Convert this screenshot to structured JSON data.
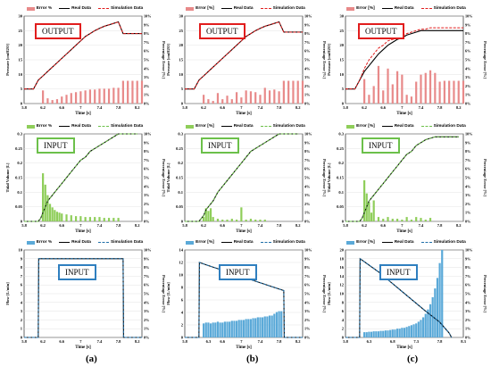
{
  "labels": [
    "(a)",
    "(b)",
    "(c)"
  ],
  "colors": {
    "output_bar": "#e88a8a",
    "input_bar": "#8fce5a",
    "flow_bar": "#5aa9d8",
    "real": "#000000",
    "sim_output": "#e11d1d",
    "sim_input": "#6cc04a",
    "sim_flow": "#1f6fa8"
  },
  "panels": [
    {
      "id": "a-output",
      "title": "OUTPUT",
      "frame": "red",
      "legend": [
        "Error %",
        "Real Data",
        "Simulation Data"
      ],
      "ylabel": "Pressure [cmH2O]",
      "y2label": "Percentage Error [%]",
      "xlabel": "Time [s]",
      "yticks": [
        "0",
        "5",
        "10",
        "15",
        "20",
        "25",
        "30"
      ],
      "y2ticks": [
        "0%",
        "1%",
        "2%",
        "3%",
        "4%",
        "5%",
        "6%",
        "7%",
        "8%",
        "9%",
        "10%"
      ],
      "xticks": [
        "5.8",
        "6.2",
        "6.6",
        "7",
        "7.4",
        "7.8",
        "8.2"
      ]
    },
    {
      "id": "b-output",
      "title": "OUTPUT",
      "frame": "red",
      "legend": [
        "Error [%]",
        "Real Data",
        "Simulation Data"
      ],
      "ylabel": "Pressure [cmH2O]",
      "y2label": "Percentage Error [%]",
      "xlabel": "Time [s]",
      "yticks": [
        "0",
        "5",
        "10",
        "15",
        "20",
        "25",
        "30"
      ],
      "y2ticks": [
        "0%",
        "1%",
        "2%",
        "3%",
        "4%",
        "5%",
        "6%",
        "7%",
        "8%",
        "9%",
        "10%"
      ],
      "xticks": [
        "5.8",
        "6.2",
        "6.6",
        "7",
        "7.4",
        "7.8",
        "8.2"
      ]
    },
    {
      "id": "c-output",
      "title": "OUTPUT",
      "frame": "red",
      "legend": [
        "Error [%]",
        "Real Data",
        "Simulation Data"
      ],
      "ylabel": "Pressure [cmH2O]",
      "y2label": "Percentage Error [%]",
      "xlabel": "Time [s]",
      "yticks": [
        "0",
        "5",
        "10",
        "15",
        "20",
        "25",
        "30"
      ],
      "y2ticks": [
        "0%",
        "1%",
        "2%",
        "3%",
        "4%",
        "5%",
        "6%",
        "7%",
        "8%",
        "9%",
        "10%"
      ],
      "xticks": [
        "5.8",
        "6.2",
        "6.6",
        "7",
        "7.4",
        "7.8",
        "8.2"
      ]
    },
    {
      "id": "a-input",
      "title": "INPUT",
      "frame": "green",
      "legend": [
        "Error %",
        "Real Data",
        "Simulation Data"
      ],
      "ylabel": "Tidal Volume [L]",
      "y2label": "Percentage Error [%]",
      "xlabel": "Time [s]",
      "yticks": [
        "0",
        "0.05",
        "0.1",
        "0.15",
        "0.2",
        "0.25",
        "0.3"
      ],
      "y2ticks": [
        "0%",
        "1%",
        "2%",
        "3%",
        "4%",
        "5%",
        "6%",
        "7%",
        "8%",
        "9%",
        "10%"
      ],
      "xticks": [
        "5.8",
        "6.2",
        "6.6",
        "7",
        "7.4",
        "7.8",
        "8.2"
      ]
    },
    {
      "id": "b-input",
      "title": "INPUT",
      "frame": "green",
      "legend": [
        "Error [%]",
        "Real Data",
        "Simulation Data"
      ],
      "ylabel": "Tidal Volume [L]",
      "y2label": "Percentage Error [%]",
      "xlabel": "Time [s]",
      "yticks": [
        "0",
        "0.05",
        "0.1",
        "0.15",
        "0.2",
        "0.25",
        "0.3"
      ],
      "y2ticks": [
        "0%",
        "1%",
        "2%",
        "3%",
        "4%",
        "5%",
        "6%",
        "7%",
        "8%",
        "9%",
        "10%"
      ],
      "xticks": [
        "5.8",
        "6.2",
        "6.6",
        "7",
        "7.4",
        "7.8",
        "8.2"
      ]
    },
    {
      "id": "c-input",
      "title": "INPUT",
      "frame": "green",
      "legend": [
        "Error [%]",
        "Real Data",
        "Simulation Data"
      ],
      "ylabel": "Tidal Volume [L]",
      "y2label": "Percentage Error [%]",
      "xlabel": "Time [s]",
      "yticks": [
        "0",
        "0.05",
        "0.1",
        "0.15",
        "0.2",
        "0.25",
        "0.3"
      ],
      "y2ticks": [
        "0%",
        "1%",
        "2%",
        "3%",
        "4%",
        "5%",
        "6%",
        "7%",
        "8%",
        "9%",
        "10%"
      ],
      "xticks": [
        "5.8",
        "6.2",
        "6.6",
        "7",
        "7.4",
        "7.8",
        "8.2"
      ]
    },
    {
      "id": "a-flow",
      "title": "INPUT",
      "frame": "blue",
      "legend": [
        "Error %",
        "Real Data",
        "Simulation Data"
      ],
      "ylabel": "Flow [L/min]",
      "y2label": "Percentage Error [%]",
      "xlabel": "Time [s]",
      "yticks": [
        "0",
        "1",
        "2",
        "3",
        "4",
        "5",
        "6",
        "7",
        "8",
        "9",
        "10"
      ],
      "y2ticks": [
        "0%",
        "1%",
        "2%",
        "3%",
        "4%",
        "5%",
        "6%",
        "7%",
        "8%",
        "9%",
        "10%"
      ],
      "xticks": [
        "5.8",
        "6.2",
        "6.6",
        "7",
        "7.4",
        "7.8",
        "8.2"
      ]
    },
    {
      "id": "b-flow",
      "title": "INPUT",
      "frame": "blue",
      "legend": [
        "Error [%]",
        "Real Data",
        "Simulation Data"
      ],
      "ylabel": "Flow [L/min]",
      "y2label": "Percentage Error [%]",
      "xlabel": "Time [s]",
      "yticks": [
        "0",
        "2",
        "4",
        "6",
        "8",
        "10",
        "12",
        "14"
      ],
      "y2ticks": [
        "0%",
        "1%",
        "2%",
        "3%",
        "4%",
        "5%",
        "6%",
        "7%",
        "8%",
        "9%",
        "10%"
      ],
      "xticks": [
        "5.8",
        "6.3",
        "6.6",
        "7",
        "7.4",
        "7.8",
        "8.2"
      ]
    },
    {
      "id": "c-flow",
      "title": "INPUT",
      "frame": "blue",
      "legend": [
        "Error [%]",
        "Real Data",
        "Simulation Data"
      ],
      "ylabel": "Flow [L/min]",
      "y2label": "Percentage Error [%]",
      "xlabel": "Time [s]",
      "yticks": [
        "0",
        "2",
        "4",
        "6",
        "8",
        "10",
        "12",
        "14",
        "16",
        "18",
        "20"
      ],
      "y2ticks": [
        "0%",
        "1%",
        "2%",
        "3%",
        "4%",
        "5%",
        "6%",
        "7%",
        "8%",
        "9%",
        "10%"
      ],
      "xticks": [
        "5.8",
        "6.3",
        "6.8",
        "7.3",
        "7.8",
        "8.3"
      ]
    }
  ],
  "chart_data": [
    {
      "type": "bar+line",
      "panel": "a-output",
      "x": [
        5.8,
        5.9,
        6.0,
        6.1,
        6.2,
        6.3,
        6.4,
        6.5,
        6.6,
        6.7,
        6.8,
        6.9,
        7.0,
        7.1,
        7.2,
        7.3,
        7.4,
        7.5,
        7.6,
        7.7,
        7.8,
        7.9,
        8.0,
        8.1,
        8.2,
        8.3
      ],
      "real": [
        5,
        5,
        5,
        8,
        9.5,
        11,
        12.5,
        14,
        15.5,
        17,
        18.5,
        20,
        21.5,
        23,
        24,
        25,
        25.8,
        26.5,
        27,
        27.5,
        28,
        24,
        24,
        24,
        24,
        24
      ],
      "sim": [
        5,
        5,
        5,
        8,
        9.5,
        11,
        12.5,
        14,
        15.5,
        17,
        18.5,
        20,
        21.5,
        23,
        24,
        25,
        25.8,
        26.5,
        27,
        27.5,
        28,
        24,
        24,
        24,
        24,
        24
      ],
      "error_pct": [
        0,
        0,
        0,
        0,
        1.5,
        0.6,
        0.4,
        0.5,
        0.8,
        1.0,
        1.2,
        1.3,
        1.4,
        1.5,
        1.6,
        1.6,
        1.7,
        1.7,
        1.7,
        1.8,
        1.8,
        2.6,
        2.6,
        2.6,
        2.6,
        2.6
      ]
    },
    {
      "type": "bar+line",
      "panel": "b-output",
      "x": [
        5.8,
        5.9,
        6.0,
        6.1,
        6.2,
        6.3,
        6.4,
        6.5,
        6.6,
        6.7,
        6.8,
        6.9,
        7.0,
        7.1,
        7.2,
        7.3,
        7.4,
        7.5,
        7.6,
        7.7,
        7.8,
        7.9,
        8.0,
        8.1,
        8.2,
        8.3
      ],
      "real": [
        5,
        5,
        5,
        8,
        9.5,
        11,
        12.5,
        14,
        15.5,
        17,
        18.5,
        20,
        21.5,
        23,
        24,
        25,
        25.8,
        26.5,
        27,
        27.5,
        28,
        24.5,
        24.5,
        24.5,
        24.5,
        24.5
      ],
      "sim": [
        5,
        5,
        5,
        8,
        9.5,
        11,
        12.5,
        14,
        15.5,
        17,
        18.5,
        20,
        21.5,
        23,
        24,
        25,
        25.8,
        26.5,
        27,
        27.5,
        28,
        24.5,
        24.5,
        24.5,
        24.5,
        24.5
      ],
      "error_pct": [
        0,
        0,
        0,
        0,
        1.0,
        0.5,
        0.3,
        1.2,
        0.5,
        0.9,
        0.5,
        1.3,
        0.7,
        1.5,
        1.4,
        1.3,
        1.0,
        1.8,
        1.5,
        1.6,
        1.4,
        2.6,
        2.6,
        2.6,
        2.6,
        2.6
      ]
    },
    {
      "type": "bar+line",
      "panel": "c-output",
      "x": [
        5.8,
        5.9,
        6.0,
        6.1,
        6.2,
        6.3,
        6.4,
        6.5,
        6.6,
        6.7,
        6.8,
        6.9,
        7.0,
        7.1,
        7.2,
        7.3,
        7.4,
        7.5,
        7.6,
        7.7,
        7.8,
        7.9,
        8.0,
        8.1,
        8.2,
        8.3
      ],
      "real": [
        5,
        5,
        5,
        8,
        11,
        13,
        15,
        17,
        18.5,
        20,
        21,
        22,
        22.5,
        23.5,
        24,
        24.5,
        25,
        25,
        25,
        25,
        25,
        25,
        25,
        25,
        25,
        25
      ],
      "sim": [
        5,
        5,
        5,
        8,
        12,
        15,
        17,
        19,
        20,
        21.5,
        22,
        22.5,
        23,
        24,
        24.5,
        25,
        25.5,
        25.5,
        26,
        26,
        26,
        26,
        26,
        26,
        26,
        26
      ],
      "error_pct": [
        0,
        0,
        0,
        0,
        2.8,
        1.0,
        2.0,
        4.3,
        1.5,
        4.0,
        2.2,
        3.7,
        3.3,
        1.0,
        0.8,
        2.5,
        3.3,
        3.5,
        3.8,
        3.5,
        2.5,
        2.6,
        2.6,
        2.6,
        2.6,
        2.6
      ]
    },
    {
      "type": "bar+line",
      "panel": "a-input",
      "x": [
        5.8,
        6.0,
        6.1,
        6.15,
        6.2,
        6.25,
        6.3,
        6.35,
        6.4,
        6.45,
        6.5,
        6.55,
        6.6,
        6.7,
        6.8,
        6.9,
        7.0,
        7.1,
        7.2,
        7.3,
        7.4,
        7.5,
        7.6,
        7.7,
        7.8,
        7.9,
        8.0,
        8.2
      ],
      "real": [
        0,
        0,
        0,
        0.01,
        0.03,
        0.05,
        0.07,
        0.08,
        0.09,
        0.1,
        0.11,
        0.12,
        0.13,
        0.15,
        0.17,
        0.19,
        0.21,
        0.22,
        0.24,
        0.25,
        0.26,
        0.27,
        0.28,
        0.29,
        0.3,
        0.3,
        0.3,
        0.3
      ],
      "sim": [
        0,
        0,
        0,
        0.01,
        0.03,
        0.05,
        0.07,
        0.08,
        0.09,
        0.1,
        0.11,
        0.12,
        0.13,
        0.15,
        0.17,
        0.19,
        0.21,
        0.22,
        0.24,
        0.25,
        0.26,
        0.27,
        0.28,
        0.29,
        0.3,
        0.3,
        0.3,
        0.3
      ],
      "error_pct": [
        0,
        0,
        0,
        0,
        5.5,
        4.2,
        3.0,
        2.0,
        1.6,
        1.3,
        1.1,
        1.0,
        0.9,
        0.8,
        0.7,
        0.6,
        0.6,
        0.5,
        0.5,
        0.5,
        0.5,
        0.4,
        0.4,
        0.4,
        0.4,
        0,
        0,
        0
      ]
    },
    {
      "type": "bar+line",
      "panel": "b-input",
      "x": [
        5.8,
        6.0,
        6.1,
        6.2,
        6.25,
        6.3,
        6.35,
        6.4,
        6.5,
        6.6,
        6.7,
        6.8,
        6.9,
        7.0,
        7.1,
        7.2,
        7.3,
        7.4,
        7.5,
        7.6,
        7.7,
        7.8,
        7.9,
        8.0,
        8.2
      ],
      "real": [
        0,
        0,
        0,
        0.02,
        0.04,
        0.05,
        0.06,
        0.07,
        0.1,
        0.12,
        0.14,
        0.16,
        0.18,
        0.2,
        0.22,
        0.24,
        0.25,
        0.26,
        0.27,
        0.28,
        0.29,
        0.3,
        0.3,
        0.3,
        0.3
      ],
      "sim": [
        0,
        0,
        0,
        0.02,
        0.04,
        0.05,
        0.06,
        0.07,
        0.1,
        0.12,
        0.14,
        0.16,
        0.18,
        0.2,
        0.22,
        0.24,
        0.25,
        0.26,
        0.27,
        0.28,
        0.29,
        0.3,
        0.3,
        0.3,
        0.3
      ],
      "error_pct": [
        0,
        0,
        0,
        0.5,
        1.5,
        1.2,
        1.5,
        0.5,
        0.3,
        0.2,
        0.2,
        0.3,
        0.2,
        1.6,
        0.2,
        0.3,
        0.2,
        0.2,
        0.2,
        0,
        0,
        0,
        0,
        0,
        0
      ]
    },
    {
      "type": "bar+line",
      "panel": "c-input",
      "x": [
        5.8,
        6.0,
        6.1,
        6.15,
        6.2,
        6.25,
        6.3,
        6.35,
        6.4,
        6.5,
        6.6,
        6.7,
        6.8,
        6.9,
        7.0,
        7.1,
        7.2,
        7.3,
        7.4,
        7.5,
        7.6,
        7.7,
        7.8,
        7.9,
        8.0,
        8.2
      ],
      "real": [
        0,
        0,
        0,
        0.01,
        0.03,
        0.05,
        0.07,
        0.08,
        0.09,
        0.11,
        0.13,
        0.15,
        0.17,
        0.19,
        0.21,
        0.23,
        0.24,
        0.26,
        0.27,
        0.28,
        0.285,
        0.29,
        0.29,
        0.29,
        0.29,
        0.29
      ],
      "sim": [
        0,
        0,
        0,
        0.01,
        0.03,
        0.05,
        0.07,
        0.08,
        0.09,
        0.11,
        0.13,
        0.15,
        0.17,
        0.19,
        0.21,
        0.23,
        0.24,
        0.26,
        0.27,
        0.28,
        0.285,
        0.29,
        0.29,
        0.29,
        0.29,
        0.29
      ],
      "error_pct": [
        0,
        0,
        0,
        0,
        4.7,
        3.2,
        2.2,
        1.0,
        2.4,
        0.5,
        0.3,
        0.5,
        0.3,
        0.3,
        0.2,
        0.5,
        0.2,
        0.5,
        0.4,
        0.2,
        0.4,
        0,
        0,
        0,
        0,
        0
      ]
    },
    {
      "type": "bar+line",
      "panel": "a-flow",
      "x": [
        5.8,
        6.1,
        6.11,
        7.9,
        7.91,
        8.3
      ],
      "real": [
        0,
        0,
        9,
        9,
        0,
        0
      ],
      "sim": [
        0,
        0,
        9,
        9,
        0,
        0
      ],
      "error_pct": [
        0,
        0,
        0,
        0,
        0,
        0
      ]
    },
    {
      "type": "bar+line",
      "panel": "b-flow",
      "x": [
        5.8,
        6.1,
        6.11,
        6.3,
        6.5,
        6.7,
        6.9,
        7.1,
        7.3,
        7.5,
        7.7,
        7.9,
        7.91,
        8.3
      ],
      "real": [
        0,
        0,
        12,
        11.5,
        11,
        10.5,
        10,
        9.5,
        9,
        8.5,
        8,
        7.5,
        0,
        0
      ],
      "sim": [
        0,
        0,
        12,
        11.5,
        11,
        10.5,
        10,
        9.5,
        9,
        8.5,
        8,
        7.5,
        0,
        0
      ],
      "error_pct": [
        0,
        0,
        0,
        1.7,
        1.8,
        1.8,
        2.0,
        2.1,
        2.2,
        2.3,
        2.4,
        2.9,
        0,
        0
      ],
      "error_bar_x": [
        6.2,
        6.25,
        6.3,
        6.35,
        6.4,
        6.45,
        6.5,
        6.55,
        6.6,
        6.65,
        6.7,
        6.75,
        6.8,
        6.85,
        6.9,
        6.95,
        7.0,
        7.05,
        7.1,
        7.15,
        7.2,
        7.25,
        7.3,
        7.35,
        7.4,
        7.45,
        7.5,
        7.55,
        7.6,
        7.65,
        7.7,
        7.75,
        7.8,
        7.85
      ],
      "error_bar_y": [
        1.6,
        1.7,
        1.7,
        1.6,
        1.7,
        1.7,
        1.8,
        1.7,
        1.7,
        1.8,
        1.8,
        1.8,
        1.9,
        1.9,
        1.9,
        2.0,
        2.0,
        2.0,
        2.1,
        2.1,
        2.1,
        2.2,
        2.2,
        2.3,
        2.3,
        2.3,
        2.4,
        2.4,
        2.5,
        2.5,
        2.7,
        2.9,
        3.0,
        3.0
      ]
    },
    {
      "type": "bar+line",
      "panel": "c-flow",
      "x": [
        5.8,
        6.1,
        6.11,
        6.5,
        7.0,
        7.5,
        7.8,
        8.0,
        8.05
      ],
      "real": [
        0,
        0,
        18,
        15,
        10.5,
        6,
        3.5,
        1,
        0
      ],
      "sim": [
        0,
        0,
        18,
        15,
        10.5,
        6,
        3.5,
        1,
        0
      ],
      "error_bar_x": [
        6.2,
        6.25,
        6.3,
        6.35,
        6.4,
        6.45,
        6.5,
        6.55,
        6.6,
        6.65,
        6.7,
        6.75,
        6.8,
        6.85,
        6.9,
        6.95,
        7.0,
        7.05,
        7.1,
        7.15,
        7.2,
        7.25,
        7.3,
        7.35,
        7.4,
        7.45,
        7.5,
        7.55,
        7.6,
        7.65,
        7.7,
        7.75,
        7.8,
        7.85
      ],
      "error_bar_y": [
        0.6,
        0.6,
        0.65,
        0.65,
        0.7,
        0.7,
        0.7,
        0.75,
        0.75,
        0.8,
        0.8,
        0.85,
        0.9,
        0.9,
        1.0,
        1.0,
        1.1,
        1.1,
        1.2,
        1.3,
        1.4,
        1.5,
        1.6,
        1.8,
        2.0,
        2.3,
        2.7,
        3.2,
        3.8,
        4.6,
        5.6,
        6.8,
        8.5,
        10.0
      ]
    }
  ]
}
